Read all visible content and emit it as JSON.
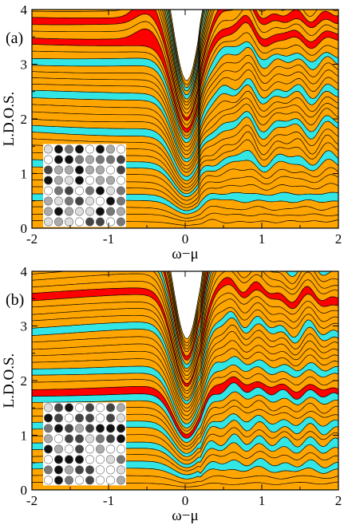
{
  "figure": {
    "colors": {
      "fill_orange": "#ffa500",
      "highlight_cyan": "#33e6e6",
      "highlight_red": "#ff0000",
      "outline": "#000000"
    }
  },
  "chart_data": [
    {
      "type": "area",
      "panel_label": "(a)",
      "xlabel": "ω−μ",
      "ylabel": "L.D.O.S.",
      "xlim": [
        -2,
        2
      ],
      "ylim": [
        0,
        4
      ],
      "x_ticks": [
        "-2",
        "-1",
        "0",
        "1",
        "2"
      ],
      "y_ticks": [
        "0",
        "1",
        "2",
        "3",
        "4"
      ],
      "curves": {
        "count": 41,
        "stacked_offset_per_site": 0.082
      },
      "highlighted_sites": [
        {
          "color": "cyan",
          "curve_index": [
            4,
            9,
            14,
            19,
            24,
            36,
            38
          ]
        },
        {
          "color": "red",
          "curve_index": [
            27,
            30
          ],
          "peak_omega": -0.5,
          "peak_height": 0.4
        }
      ],
      "features": {
        "dip_at_omega": 0,
        "upper_envelope_max": 3.1
      },
      "inset": {
        "type": "grid",
        "rows": 8,
        "cols": 8,
        "description_values": "site occupation greyscale"
      }
    },
    {
      "type": "area",
      "panel_label": "(b)",
      "xlabel": "ω−μ",
      "ylabel": "L.D.O.S.",
      "xlim": [
        -2,
        2
      ],
      "ylim": [
        0,
        4
      ],
      "x_ticks": [
        "-2",
        "-1",
        "0",
        "1",
        "2"
      ],
      "y_ticks": [
        "0",
        "1",
        "2",
        "3",
        "4"
      ],
      "curves": {
        "count": 41,
        "stacked_offset_per_site": 0.082
      },
      "highlighted_sites": [
        {
          "color": "cyan",
          "curve_index": [
            3,
            6,
            9,
            13,
            17,
            23,
            33
          ]
        },
        {
          "color": "red",
          "curve_index": [
            14,
            28,
            35
          ]
        }
      ],
      "features": {
        "dip_at_omega": 0,
        "upper_envelope_max": 3.1
      },
      "inset": {
        "type": "grid",
        "rows": 8,
        "cols": 8
      }
    }
  ]
}
